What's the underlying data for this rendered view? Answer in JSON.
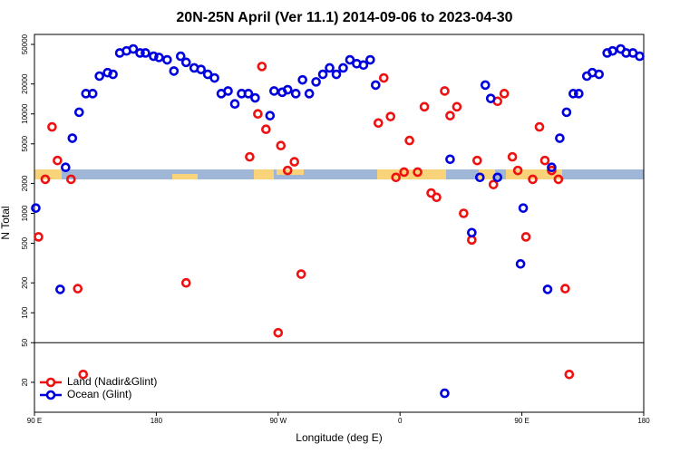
{
  "chart_data": {
    "type": "scatter",
    "title": "20N-25N April (Ver 11.1)   2014-09-06 to 2023-04-30",
    "xlabel": "Longitude (deg E)",
    "ylabel": "N Total",
    "xlim": [
      90,
      540
    ],
    "xticks": [
      {
        "value": 90,
        "label": "90 E"
      },
      180,
      {
        "value": 270,
        "label": "90 W"
      },
      {
        "value": 360,
        "label": "0"
      },
      {
        "value": 450,
        "label": "90 E"
      },
      {
        "value": 540,
        "label": "180"
      }
    ],
    "ylim": [
      10,
      63000
    ],
    "log_y": true,
    "yticks": [
      20,
      50,
      100,
      200,
      500,
      1000,
      2000,
      5000,
      10000,
      20000,
      50000
    ],
    "hline": 50,
    "legend": "lower left",
    "series": [
      {
        "name": "Land (Nadir&Glint)",
        "color": "#ee1111",
        "x": [
          93,
          98,
          103,
          107,
          117,
          122,
          126,
          202,
          249,
          255,
          258,
          261,
          272,
          270,
          277,
          282,
          287,
          344,
          348,
          353,
          357,
          363,
          367,
          373,
          378,
          383,
          387,
          393,
          397,
          402,
          407,
          413,
          417,
          429,
          432,
          437,
          443,
          447,
          453,
          458,
          463,
          467,
          472,
          477,
          482,
          485
        ],
        "values": [
          580,
          2200,
          7400,
          3400,
          2200,
          175,
          24,
          200,
          3700,
          10000,
          30000,
          7000,
          4800,
          63,
          2700,
          3300,
          245,
          8100,
          23000,
          9400,
          2300,
          2600,
          5400,
          2600,
          11800,
          1600,
          1450,
          17000,
          9600,
          11800,
          1000,
          540,
          3400,
          1950,
          13400,
          16000,
          3700,
          2700,
          580,
          2200,
          7400,
          3400,
          2700,
          2200,
          175,
          24
        ]
      },
      {
        "name": "Ocean (Glint)",
        "color": "#0000dd",
        "x": [
          91,
          109,
          113,
          118,
          123,
          128,
          133,
          138,
          144,
          148,
          153,
          158,
          163,
          168,
          172,
          178,
          182,
          188,
          193,
          198,
          202,
          208,
          213,
          218,
          223,
          228,
          233,
          238,
          243,
          248,
          253,
          264,
          267,
          273,
          277,
          283,
          288,
          293,
          298,
          303,
          308,
          313,
          318,
          323,
          328,
          333,
          338,
          342,
          393,
          397,
          413,
          419,
          423,
          427,
          432,
          449,
          451,
          469,
          472,
          478,
          483,
          488,
          492,
          498,
          502,
          507,
          513,
          517,
          523,
          527,
          532,
          537
        ],
        "values": [
          1130,
          172,
          2900,
          5700,
          10400,
          16000,
          16000,
          24000,
          26000,
          25000,
          41000,
          43000,
          45000,
          41000,
          41000,
          38000,
          37000,
          35000,
          27000,
          38000,
          33000,
          29000,
          28000,
          25000,
          23000,
          16000,
          17000,
          12600,
          16000,
          16000,
          14500,
          9600,
          17000,
          16500,
          17500,
          16000,
          22000,
          16000,
          21000,
          25000,
          29000,
          25000,
          29000,
          35000,
          32000,
          31000,
          35000,
          19500,
          15.5,
          3500,
          640,
          2300,
          19500,
          14300,
          2300,
          310,
          1130,
          172,
          2900,
          5700,
          10400,
          16000,
          16000,
          24000,
          26000,
          25000,
          41000,
          43000,
          45000,
          41000,
          41000,
          38000
        ]
      }
    ]
  }
}
